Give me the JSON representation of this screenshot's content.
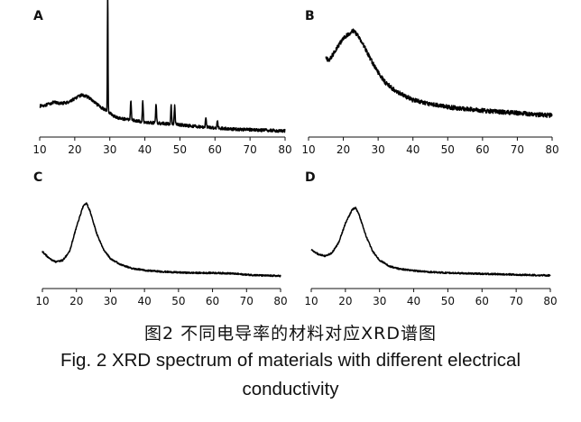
{
  "figure": {
    "caption_cn": "图2 不同电导率的材料对应XRD谱图",
    "caption_en_line1": "Fig. 2 XRD spectrum of materials with different electrical",
    "caption_en_line2": "conductivity"
  },
  "chart_data": [
    {
      "type": "line",
      "panel_label": "A",
      "xlim": [
        10,
        80
      ],
      "xticks": [
        10,
        20,
        30,
        40,
        50,
        60,
        70,
        80
      ],
      "ylabel": "",
      "xlabel": "",
      "baseline_points": [
        [
          10,
          0.22
        ],
        [
          12,
          0.23
        ],
        [
          14,
          0.25
        ],
        [
          16,
          0.24
        ],
        [
          18,
          0.25
        ],
        [
          20,
          0.28
        ],
        [
          22,
          0.31
        ],
        [
          24,
          0.29
        ],
        [
          26,
          0.24
        ],
        [
          28,
          0.2
        ],
        [
          29.5,
          0.18
        ],
        [
          31,
          0.14
        ],
        [
          33,
          0.12
        ],
        [
          36,
          0.11
        ],
        [
          40,
          0.09
        ],
        [
          45,
          0.08
        ],
        [
          50,
          0.07
        ],
        [
          55,
          0.055
        ],
        [
          60,
          0.045
        ],
        [
          65,
          0.035
        ],
        [
          70,
          0.03
        ],
        [
          75,
          0.025
        ],
        [
          80,
          0.02
        ]
      ],
      "peaks": [
        [
          29.4,
          1.0
        ],
        [
          36,
          0.16
        ],
        [
          39.4,
          0.17
        ],
        [
          43.2,
          0.16
        ],
        [
          47.5,
          0.15
        ],
        [
          48.5,
          0.15
        ],
        [
          57.4,
          0.08
        ],
        [
          60.7,
          0.06
        ]
      ],
      "noise": 0.012
    },
    {
      "type": "line",
      "panel_label": "B",
      "xlim": [
        10,
        80
      ],
      "xticks": [
        10,
        20,
        30,
        40,
        50,
        60,
        70,
        80
      ],
      "ylabel": "",
      "xlabel": "",
      "start_x": 15,
      "baseline_points": [
        [
          15,
          0.62
        ],
        [
          16,
          0.6
        ],
        [
          17,
          0.66
        ],
        [
          18,
          0.72
        ],
        [
          20,
          0.82
        ],
        [
          22,
          0.88
        ],
        [
          23,
          0.9
        ],
        [
          24,
          0.86
        ],
        [
          26,
          0.74
        ],
        [
          28,
          0.6
        ],
        [
          30,
          0.48
        ],
        [
          32,
          0.38
        ],
        [
          35,
          0.29
        ],
        [
          40,
          0.2
        ],
        [
          45,
          0.16
        ],
        [
          50,
          0.13
        ],
        [
          55,
          0.11
        ],
        [
          60,
          0.095
        ],
        [
          65,
          0.08
        ],
        [
          70,
          0.07
        ],
        [
          75,
          0.055
        ],
        [
          80,
          0.045
        ]
      ],
      "peaks": [],
      "noise": 0.022
    },
    {
      "type": "line",
      "panel_label": "C",
      "xlim": [
        10,
        80
      ],
      "xticks": [
        10,
        20,
        30,
        40,
        50,
        60,
        70,
        80
      ],
      "ylabel": "",
      "xlabel": "",
      "baseline_points": [
        [
          10,
          0.3
        ],
        [
          12,
          0.22
        ],
        [
          14,
          0.18
        ],
        [
          16,
          0.2
        ],
        [
          18,
          0.3
        ],
        [
          20,
          0.58
        ],
        [
          22,
          0.82
        ],
        [
          23,
          0.85
        ],
        [
          24,
          0.76
        ],
        [
          26,
          0.5
        ],
        [
          28,
          0.32
        ],
        [
          30,
          0.22
        ],
        [
          33,
          0.15
        ],
        [
          36,
          0.11
        ],
        [
          40,
          0.085
        ],
        [
          45,
          0.07
        ],
        [
          50,
          0.06
        ],
        [
          55,
          0.055
        ],
        [
          60,
          0.055
        ],
        [
          65,
          0.05
        ],
        [
          70,
          0.035
        ],
        [
          75,
          0.025
        ],
        [
          80,
          0.02
        ]
      ],
      "peaks": [],
      "noise": 0.009
    },
    {
      "type": "line",
      "panel_label": "D",
      "xlim": [
        10,
        80
      ],
      "xticks": [
        10,
        20,
        30,
        40,
        50,
        60,
        70,
        80
      ],
      "ylabel": "",
      "xlabel": "",
      "baseline_points": [
        [
          10,
          0.32
        ],
        [
          12,
          0.27
        ],
        [
          14,
          0.25
        ],
        [
          16,
          0.28
        ],
        [
          18,
          0.4
        ],
        [
          20,
          0.62
        ],
        [
          22,
          0.78
        ],
        [
          23,
          0.8
        ],
        [
          24,
          0.72
        ],
        [
          26,
          0.48
        ],
        [
          28,
          0.3
        ],
        [
          30,
          0.2
        ],
        [
          33,
          0.13
        ],
        [
          36,
          0.1
        ],
        [
          40,
          0.08
        ],
        [
          45,
          0.065
        ],
        [
          50,
          0.055
        ],
        [
          55,
          0.05
        ],
        [
          60,
          0.045
        ],
        [
          65,
          0.04
        ],
        [
          70,
          0.035
        ],
        [
          75,
          0.03
        ],
        [
          80,
          0.025
        ]
      ],
      "peaks": [],
      "noise": 0.009
    }
  ]
}
